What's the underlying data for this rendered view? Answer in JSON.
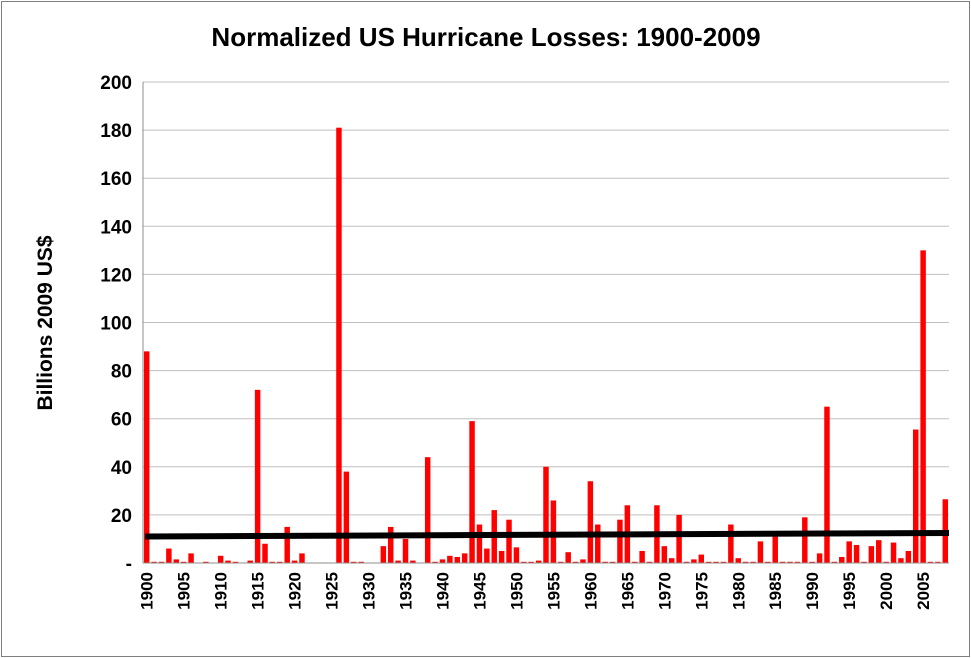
{
  "chart_data": {
    "type": "bar",
    "title": "Normalized US Hurricane Losses: 1900-2009",
    "xlabel": "",
    "ylabel": "Billions 2009 US$",
    "ylim": [
      0,
      200
    ],
    "yticks": [
      0,
      20,
      40,
      60,
      80,
      100,
      120,
      140,
      160,
      180,
      200
    ],
    "ytick_labels": [
      "-",
      "20",
      "40",
      "60",
      "80",
      "100",
      "120",
      "140",
      "160",
      "180",
      "200"
    ],
    "xtick_labels": [
      "1900",
      "1905",
      "1910",
      "1915",
      "1920",
      "1925",
      "1930",
      "1935",
      "1940",
      "1945",
      "1950",
      "1955",
      "1960",
      "1965",
      "1970",
      "1975",
      "1980",
      "1985",
      "1990",
      "1995",
      "2000",
      "2005"
    ],
    "grid": "horizontal",
    "bar_color": "#ff0000",
    "trend_color": "#000000",
    "years": [
      1900,
      1901,
      1902,
      1903,
      1904,
      1905,
      1906,
      1907,
      1908,
      1909,
      1910,
      1911,
      1912,
      1913,
      1914,
      1915,
      1916,
      1917,
      1918,
      1919,
      1920,
      1921,
      1922,
      1923,
      1924,
      1925,
      1926,
      1927,
      1928,
      1929,
      1930,
      1931,
      1932,
      1933,
      1934,
      1935,
      1936,
      1937,
      1938,
      1939,
      1940,
      1941,
      1942,
      1943,
      1944,
      1945,
      1946,
      1947,
      1948,
      1949,
      1950,
      1951,
      1952,
      1953,
      1954,
      1955,
      1956,
      1957,
      1958,
      1959,
      1960,
      1961,
      1962,
      1963,
      1964,
      1965,
      1966,
      1967,
      1968,
      1969,
      1970,
      1971,
      1972,
      1973,
      1974,
      1975,
      1976,
      1977,
      1978,
      1979,
      1980,
      1981,
      1982,
      1983,
      1984,
      1985,
      1986,
      1987,
      1988,
      1989,
      1990,
      1991,
      1992,
      1993,
      1994,
      1995,
      1996,
      1997,
      1998,
      1999,
      2000,
      2001,
      2002,
      2003,
      2004,
      2005,
      2006,
      2007,
      2008
    ],
    "values": [
      88,
      0.5,
      0.5,
      6,
      1.5,
      0.5,
      4,
      0,
      0.5,
      0,
      3,
      1,
      0.5,
      0,
      1,
      72,
      8,
      0.5,
      0.5,
      15,
      1,
      4,
      0,
      0,
      0,
      0,
      181,
      38,
      0.5,
      0.5,
      0,
      0,
      7,
      15,
      1,
      10,
      1,
      0,
      44,
      0.5,
      1.5,
      3,
      2.5,
      4,
      59,
      16,
      6,
      22,
      5,
      18,
      6.5,
      0.5,
      0.5,
      1,
      40,
      26,
      0.5,
      4.5,
      0.5,
      1.5,
      34,
      16,
      0.5,
      0.5,
      18,
      24,
      0.5,
      5,
      0.5,
      24,
      7,
      2,
      20,
      0.5,
      1.5,
      3.5,
      0.5,
      0.5,
      0.5,
      16,
      2,
      0.5,
      0.5,
      9,
      0.5,
      11,
      0.5,
      0.5,
      0.5,
      19,
      0.5,
      4,
      65,
      0.5,
      2.5,
      9,
      7.5,
      0.5,
      7,
      9.5,
      0.5,
      8.5,
      2,
      5,
      55.5,
      130,
      0.5,
      0.5,
      26.5
    ],
    "trend": {
      "start": [
        1900,
        11
      ],
      "end": [
        2008,
        12.5
      ]
    }
  }
}
